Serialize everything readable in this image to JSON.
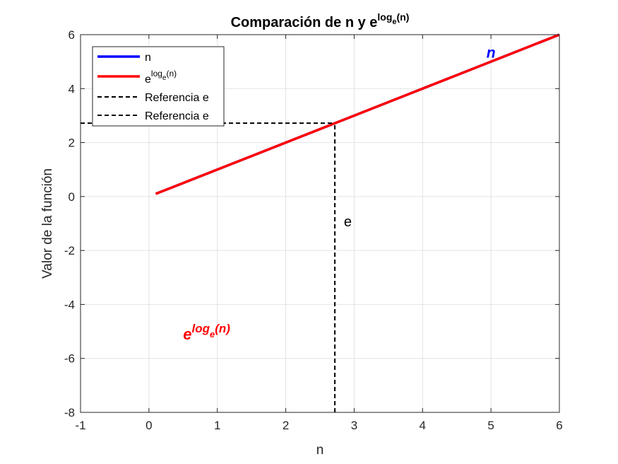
{
  "chart_data": {
    "type": "line",
    "title": {
      "prefix": "Comparación de n y e",
      "sup_main": "log",
      "sup_sub": "e",
      "sup_tail": "(n)"
    },
    "xlabel": "n",
    "ylabel": "Valor de la función",
    "xlim": [
      -1,
      6
    ],
    "ylim": [
      -8,
      6
    ],
    "xticks": [
      -1,
      0,
      1,
      2,
      3,
      4,
      5,
      6
    ],
    "yticks": [
      -8,
      -6,
      -4,
      -2,
      0,
      2,
      4,
      6
    ],
    "grid": true,
    "series": [
      {
        "name": "n",
        "color": "#0000ff",
        "style": "solid",
        "x": [
          0.1,
          6
        ],
        "y": [
          0.1,
          6
        ]
      },
      {
        "name_main": "e",
        "name_sup": "log",
        "name_sub": "e",
        "name_tail": "(n)",
        "color": "#ff0000",
        "style": "solid",
        "x": [
          0.1,
          6
        ],
        "y": [
          0.1,
          6
        ]
      },
      {
        "name": "Referencia e",
        "color": "#000000",
        "style": "dashed",
        "x": [
          2.718,
          2.718
        ],
        "y": [
          -8,
          2.718
        ]
      },
      {
        "name": "Referencia e",
        "color": "#000000",
        "style": "dashed",
        "x": [
          -1,
          2.718
        ],
        "y": [
          2.718,
          2.718
        ]
      }
    ],
    "legend_position": "top-left",
    "annotations": [
      {
        "id": "n-label",
        "text": "n",
        "x": 5,
        "y": 5.15,
        "color": "#0000ff"
      },
      {
        "id": "exp-label",
        "main": "e",
        "sup": "log",
        "sub": "e",
        "tail": "(n)",
        "x": 0.5,
        "y": -5.3,
        "color": "#ff0000"
      },
      {
        "id": "e-label",
        "text": "e",
        "x": 2.85,
        "y": -1.1,
        "color": "#000000"
      }
    ]
  }
}
